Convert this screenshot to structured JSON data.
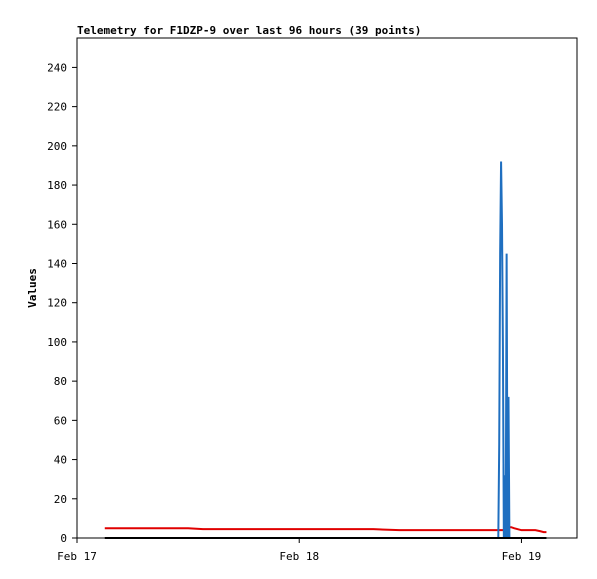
{
  "chart_data": {
    "type": "line",
    "title": "Telemetry for F1DZP-9 over last 96 hours (39 points)",
    "y_label": "Values",
    "x": [
      3,
      6,
      9,
      12,
      13.6,
      16,
      20,
      24,
      28,
      32,
      34.8,
      37,
      40,
      43,
      45,
      45.5,
      45.6,
      45.7,
      45.8,
      45.9,
      46,
      46.1,
      46.2,
      46.3,
      46.4,
      46.5,
      46.6,
      46.7,
      46.8,
      46.9,
      47.2,
      47.6,
      48,
      48.5,
      49,
      49.5,
      50,
      50.4,
      50.7
    ],
    "series": [
      {
        "color": "#000000",
        "values": [
          0,
          0,
          0,
          0,
          0,
          0,
          0,
          0,
          0,
          0,
          0,
          0,
          0,
          0,
          0,
          0,
          0,
          0,
          0,
          0,
          0,
          0,
          0,
          0,
          0,
          0,
          0,
          0,
          0,
          0,
          0,
          0,
          0,
          0,
          0,
          0,
          0,
          0,
          0
        ]
      },
      {
        "color": "#e00000",
        "values": [
          5,
          5,
          5,
          5,
          4.5,
          4.5,
          4.5,
          4.5,
          4.5,
          4.5,
          4,
          4,
          4,
          4,
          4,
          4,
          4,
          4,
          4,
          4,
          4,
          4,
          4,
          4,
          4,
          4.5,
          5,
          5.5,
          5.5,
          5.5,
          5,
          4.5,
          4,
          4,
          4,
          4,
          3.5,
          3,
          3
        ]
      },
      {
        "color": "#1f6fc0",
        "values": [
          null,
          null,
          null,
          null,
          null,
          null,
          null,
          null,
          null,
          null,
          null,
          null,
          null,
          null,
          null,
          0,
          48,
          145,
          192,
          160,
          97,
          0,
          32,
          0,
          145,
          0,
          72,
          0,
          0,
          null,
          null,
          null,
          null,
          null,
          null,
          null,
          null,
          null,
          null
        ]
      }
    ],
    "xlim": [
      0,
      54
    ],
    "ylim": [
      0,
      255
    ],
    "xticks": [
      {
        "value": 0,
        "label": "Feb 17"
      },
      {
        "value": 24,
        "label": "Feb 18"
      },
      {
        "value": 48,
        "label": "Feb 19"
      }
    ],
    "yticks": [
      0,
      20,
      40,
      60,
      80,
      100,
      120,
      140,
      160,
      180,
      200,
      220,
      240
    ]
  }
}
